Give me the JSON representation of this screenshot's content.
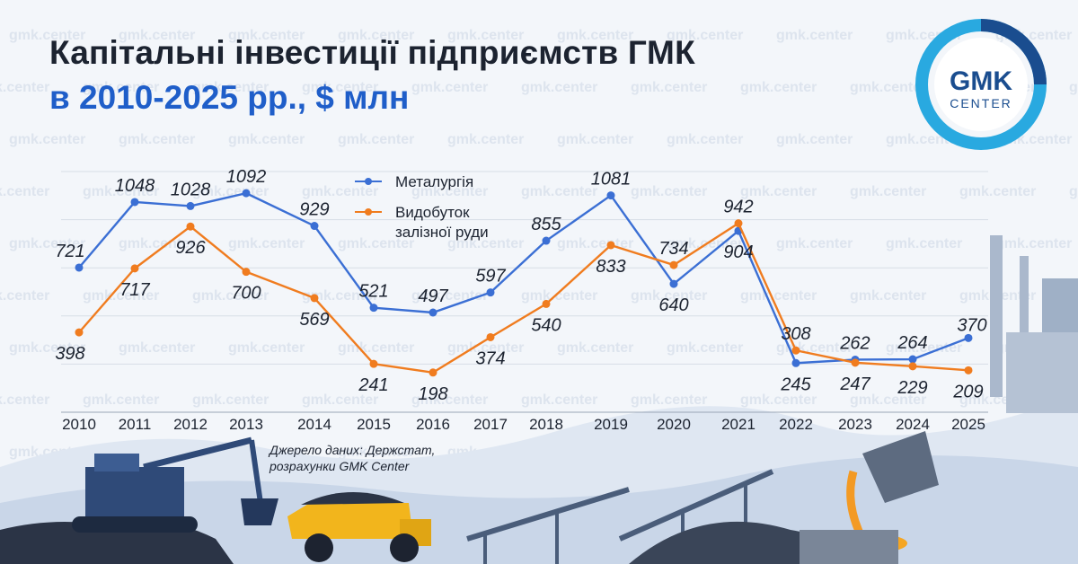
{
  "title_line1": "Капітальні інвестиції підприємств ГМК",
  "title_line2": "в 2010-2025 рр., $ млн",
  "source_line1": "Джерело даних: Держстат,",
  "source_line2": "розрахунки GMK Center",
  "logo": {
    "top": "GMK",
    "bottom": "CENTER"
  },
  "watermark_text": "gmk.center",
  "colors": {
    "metallurgy": "#3b6fd4",
    "iron_ore": "#f07c1f",
    "title_accent": "#1f5ec9",
    "logo_ring": "#1a4d8f",
    "logo_ring_light": "#29a9e0"
  },
  "chart_data": {
    "type": "line",
    "title": "Капітальні інвестиції підприємств ГМК в 2010-2025 рр., $ млн",
    "x": [
      "2010",
      "2011",
      "2012",
      "2013",
      "2014",
      "2015",
      "2016",
      "2017",
      "2018",
      "2019",
      "2020",
      "2021",
      "2022",
      "2023",
      "2024",
      "2025"
    ],
    "series": [
      {
        "name": "Металургія",
        "values": [
          721,
          1048,
          1028,
          1092,
          929,
          521,
          497,
          597,
          855,
          1081,
          640,
          904,
          245,
          262,
          264,
          370
        ]
      },
      {
        "name": "Видобуток залізної руди",
        "values": [
          398,
          717,
          926,
          700,
          569,
          241,
          198,
          374,
          540,
          833,
          734,
          942,
          308,
          247,
          229,
          209
        ]
      }
    ],
    "ylim": [
      0,
      1200
    ],
    "grid": true,
    "legend": "top-center"
  }
}
